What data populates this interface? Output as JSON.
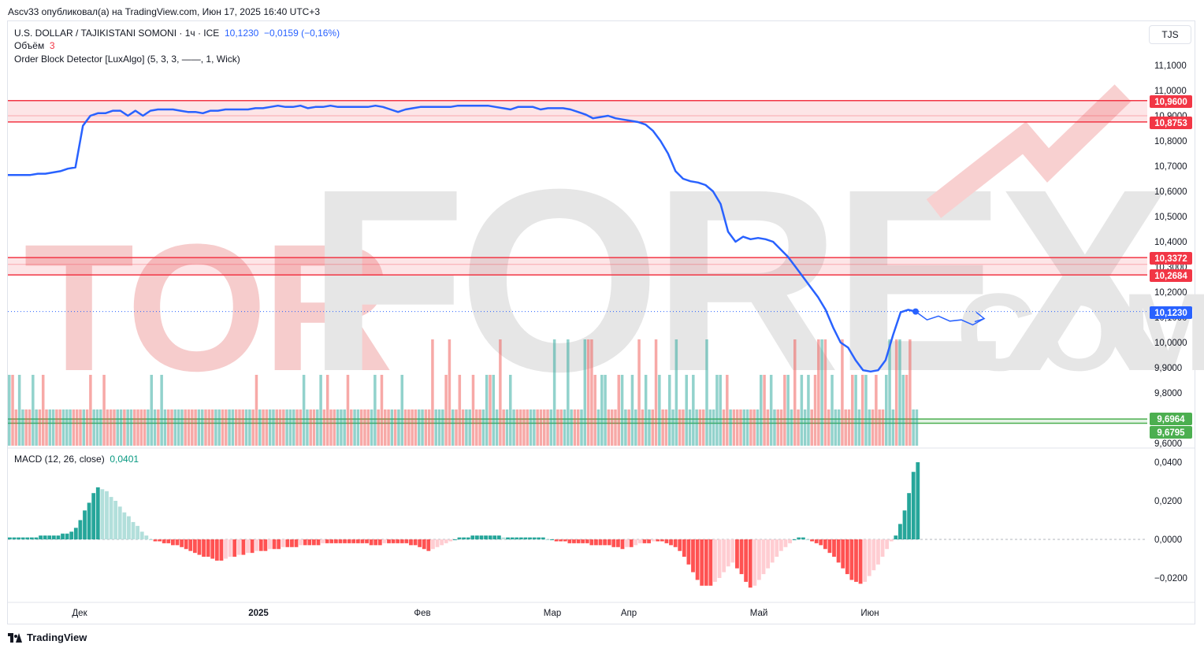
{
  "header": {
    "published_line": "Ascv33 опубликовал(а) на TradingView.com, Июн 17, 2025 16:40 UTC+3"
  },
  "legend": {
    "symbol": "U.S. DOLLAR / TAJIKISTANI SOMONI · 1ч · ICE",
    "last": "10,1230",
    "change": "−0,0159 (−0,16%)",
    "volume_label": "Объём",
    "volume_value": "3",
    "indicator": "Order Block Detector [LuxAlgo] (5, 3, 3, ——, 1, Wick)",
    "macd_label": "MACD (12, 26, close)",
    "macd_value": "0,0401"
  },
  "currency_button": "TJS",
  "watermark": "TORFOREX.COM",
  "footer": {
    "brand": "TradingView"
  },
  "colors": {
    "line": "#2962ff",
    "up": "#26a69a",
    "down": "#ef5350",
    "zone_red": "#f23645",
    "zone_green": "#4caf50",
    "macd_up_strong": "#26a69a",
    "macd_up_weak": "#b2dfdb",
    "macd_down_strong": "#ff5252",
    "macd_down_weak": "#ffcdd2"
  },
  "chart_data": [
    {
      "type": "line",
      "title": "U.S. DOLLAR / TAJIKISTANI SOMONI",
      "x_labels": [
        "Дек",
        "2025",
        "Фев",
        "Мар",
        "Апр",
        "Май",
        "Июн"
      ],
      "y_ticks": [
        "11,1000",
        "11,0000",
        "10,9000",
        "10,8000",
        "10,7000",
        "10,6000",
        "10,5000",
        "10,4000",
        "10,3000",
        "10,2000",
        "10,1000",
        "10,0000",
        "9,9000",
        "9,8000",
        "9,6000"
      ],
      "ylim": [
        9.6,
        11.15
      ],
      "series": [
        {
          "values": [
            10.665,
            10.665,
            10.665,
            10.665,
            10.67,
            10.67,
            10.675,
            10.68,
            10.69,
            10.695,
            10.86,
            10.9,
            10.91,
            10.91,
            10.92,
            10.92,
            10.9,
            10.92,
            10.9,
            10.92,
            10.925,
            10.925,
            10.925,
            10.92,
            10.915,
            10.915,
            10.91,
            10.92,
            10.92,
            10.925,
            10.925,
            10.925,
            10.925,
            10.93,
            10.93,
            10.935,
            10.94,
            10.935,
            10.935,
            10.94,
            10.93,
            10.935,
            10.935,
            10.94,
            10.935,
            10.935,
            10.935,
            10.935,
            10.935,
            10.94,
            10.935,
            10.925,
            10.915,
            10.925,
            10.93,
            10.935,
            10.935,
            10.935,
            10.935,
            10.935,
            10.94,
            10.94,
            10.94,
            10.94,
            10.94,
            10.935,
            10.93,
            10.925,
            10.935,
            10.935,
            10.935,
            10.925,
            10.93,
            10.93,
            10.93,
            10.925,
            10.915,
            10.905,
            10.89,
            10.895,
            10.9,
            10.89,
            10.885,
            10.88,
            10.875,
            10.865,
            10.84,
            10.8,
            10.75,
            10.68,
            10.65,
            10.64,
            10.635,
            10.625,
            10.6,
            10.55,
            10.44,
            10.4,
            10.42,
            10.41,
            10.415,
            10.41,
            10.4,
            10.37,
            10.34,
            10.3,
            10.26,
            10.22,
            10.18,
            10.13,
            10.06,
            10.0,
            9.98,
            9.93,
            9.89,
            9.885,
            9.89,
            9.93,
            10.03,
            10.12,
            10.13,
            10.123
          ]
        }
      ],
      "projection": [
        10.123,
        10.09,
        10.105,
        10.085,
        10.09,
        10.07,
        10.095
      ],
      "price_tags": [
        {
          "label": "10,9600",
          "value": 10.96,
          "color": "#f23645"
        },
        {
          "label": "10,8753",
          "value": 10.8753,
          "color": "#f23645"
        },
        {
          "label": "10,3372",
          "value": 10.3372,
          "color": "#f23645"
        },
        {
          "label": "10,2684",
          "value": 10.2684,
          "color": "#f23645"
        },
        {
          "label": "10,1230",
          "value": 10.123,
          "color": "#2962ff"
        },
        {
          "label": "9,6964",
          "value": 9.6964,
          "color": "#4caf50"
        },
        {
          "label": "9,6795",
          "value": 9.6795,
          "color": "#4caf50"
        }
      ],
      "order_blocks": [
        {
          "kind": "bearish",
          "top": 10.96,
          "bottom": 10.8753,
          "mid": 10.9
        },
        {
          "kind": "bearish",
          "top": 10.3372,
          "bottom": 10.2684,
          "mid": 10.31
        },
        {
          "kind": "bullish",
          "top": 9.6964,
          "bottom": 9.6795
        }
      ]
    },
    {
      "type": "bar",
      "title": "Объём",
      "values": [
        2,
        2,
        1,
        2,
        1,
        1,
        1,
        2,
        1,
        1,
        2,
        1,
        1,
        1,
        1,
        1,
        1,
        1,
        1,
        1,
        1,
        1,
        1,
        1,
        2,
        1,
        1,
        1,
        2,
        1,
        1,
        1,
        1,
        1,
        1,
        1,
        1,
        1,
        1,
        1,
        1,
        1,
        2,
        1,
        1,
        2,
        1,
        1,
        1,
        1,
        1,
        1,
        1,
        1,
        1,
        1,
        1,
        1,
        1,
        1,
        1,
        1,
        1,
        1,
        1,
        1,
        1,
        1,
        1,
        1,
        1,
        1,
        1,
        2,
        1,
        1,
        1,
        1,
        1,
        1,
        1,
        1,
        1,
        1,
        1,
        1,
        1,
        2,
        1,
        1,
        1,
        1,
        2,
        1,
        2,
        1,
        1,
        1,
        1,
        1,
        2,
        1,
        1,
        1,
        1,
        1,
        1,
        1,
        2,
        1,
        2,
        1,
        1,
        1,
        1,
        1,
        2,
        1,
        1,
        1,
        1,
        1,
        1,
        1,
        1,
        3,
        1,
        1,
        1,
        2,
        3,
        1,
        1,
        2,
        1,
        1,
        1,
        2,
        1,
        1,
        1,
        2,
        2,
        2,
        1,
        3,
        1,
        1,
        2,
        1,
        1,
        1,
        1,
        1,
        1,
        1,
        1,
        1,
        1,
        1,
        1,
        3,
        1,
        1,
        1,
        3,
        1,
        1,
        1,
        1,
        3,
        3,
        3,
        2,
        1,
        2,
        2,
        1,
        1,
        1,
        2,
        2,
        1,
        1,
        2,
        1,
        3,
        1,
        2,
        1,
        1,
        3,
        2,
        1,
        1,
        2,
        1,
        3,
        1,
        1,
        2,
        1,
        2,
        1,
        1,
        1,
        3,
        1,
        1,
        2,
        2,
        1,
        2,
        1,
        1,
        1,
        1,
        1,
        1,
        1,
        1,
        1,
        2,
        2,
        1,
        2,
        1,
        1,
        1,
        2,
        2,
        1,
        3,
        1,
        2,
        1,
        2,
        1,
        2,
        3,
        3,
        3,
        1,
        2,
        1,
        1,
        3,
        1,
        1,
        2,
        2,
        1,
        2,
        2,
        1,
        1,
        2,
        1,
        1,
        2,
        3,
        1,
        3,
        3,
        2,
        2,
        3,
        1,
        1
      ],
      "directions": "udduudduuddduudduuudddudduuudddduuduudddduuuduudduuudddduuddduudduuddduuddudduuddduuudduudduudddduuudduuddduudddduduudddduuddduuudduddduuddduuduudduuudddduudddduudduuudduuddduuudddduuduudduuddudduuudduuuudduuuuuddudddu"
    },
    {
      "type": "bar",
      "title": "MACD (12, 26, close)",
      "y_ticks": [
        "0,0400",
        "0,0200",
        "0,0000",
        "−0,0200"
      ],
      "ylim": [
        -0.03,
        0.042
      ],
      "values": [
        0.001,
        0.001,
        0.001,
        0.001,
        0.001,
        0.001,
        0.001,
        0.002,
        0.002,
        0.002,
        0.002,
        0.002,
        0.003,
        0.003,
        0.004,
        0.006,
        0.01,
        0.015,
        0.019,
        0.024,
        0.027,
        0.026,
        0.025,
        0.022,
        0.02,
        0.017,
        0.014,
        0.012,
        0.009,
        0.007,
        0.004,
        0.002,
        0,
        -0.001,
        -0.001,
        -0.002,
        -0.002,
        -0.003,
        -0.003,
        -0.004,
        -0.005,
        -0.006,
        -0.007,
        -0.008,
        -0.009,
        -0.009,
        -0.01,
        -0.011,
        -0.011,
        -0.01,
        -0.009,
        -0.009,
        -0.008,
        -0.008,
        -0.007,
        -0.007,
        -0.006,
        -0.006,
        -0.006,
        -0.005,
        -0.005,
        -0.005,
        -0.004,
        -0.004,
        -0.004,
        -0.004,
        -0.003,
        -0.003,
        -0.003,
        -0.003,
        -0.003,
        -0.002,
        -0.002,
        -0.002,
        -0.002,
        -0.002,
        -0.002,
        -0.002,
        -0.002,
        -0.002,
        -0.002,
        -0.002,
        -0.003,
        -0.003,
        -0.003,
        -0.002,
        -0.002,
        -0.002,
        -0.002,
        -0.002,
        -0.002,
        -0.003,
        -0.003,
        -0.004,
        -0.005,
        -0.006,
        -0.005,
        -0.004,
        -0.003,
        -0.002,
        -0.001,
        0,
        0.001,
        0.001,
        0.001,
        0.002,
        0.002,
        0.002,
        0.002,
        0.002,
        0.002,
        0.002,
        0.001,
        0.001,
        0.001,
        0.001,
        0.001,
        0.001,
        0.001,
        0.001,
        0.001,
        0.001,
        0,
        0,
        -0.001,
        -0.001,
        -0.001,
        -0.002,
        -0.002,
        -0.002,
        -0.002,
        -0.002,
        -0.003,
        -0.003,
        -0.003,
        -0.003,
        -0.003,
        -0.004,
        -0.004,
        -0.005,
        -0.004,
        -0.004,
        -0.003,
        -0.002,
        -0.002,
        -0.002,
        -0.001,
        -0.001,
        -0.001,
        -0.002,
        -0.003,
        -0.004,
        -0.006,
        -0.009,
        -0.013,
        -0.017,
        -0.021,
        -0.024,
        -0.024,
        -0.024,
        -0.022,
        -0.02,
        -0.017,
        -0.014,
        -0.012,
        -0.015,
        -0.018,
        -0.022,
        -0.025,
        -0.024,
        -0.021,
        -0.018,
        -0.015,
        -0.012,
        -0.009,
        -0.006,
        -0.004,
        -0.002,
        0,
        0.001,
        0.001,
        0,
        -0.001,
        -0.002,
        -0.003,
        -0.005,
        -0.007,
        -0.009,
        -0.012,
        -0.015,
        -0.018,
        -0.021,
        -0.022,
        -0.023,
        -0.022,
        -0.019,
        -0.016,
        -0.013,
        -0.009,
        -0.005,
        -0.001,
        0.002,
        0.008,
        0.015,
        0.024,
        0.035,
        0.04
      ]
    }
  ]
}
